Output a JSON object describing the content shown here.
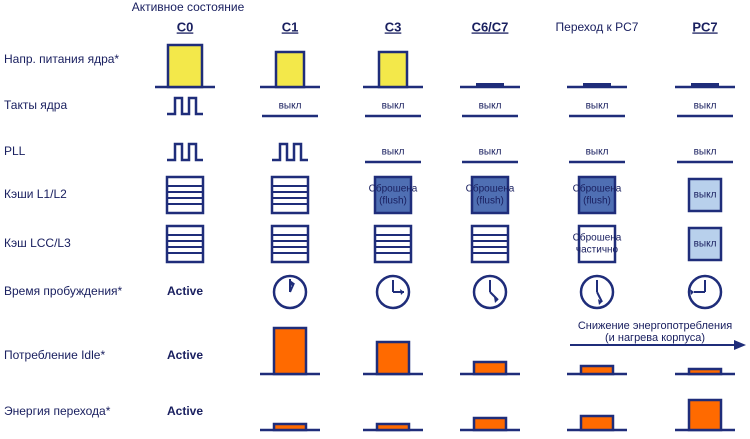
{
  "header": {
    "title": "Активное состояние",
    "columns": [
      "C0",
      "C1",
      "C3",
      "C6/C7",
      "Переход к PC7",
      "PC7"
    ]
  },
  "rows": [
    {
      "label": "Напр. питания ядра*",
      "cells": {}
    },
    {
      "label": "Такты ядра",
      "cells": {
        "C1": "выкл",
        "C3": "выкл",
        "C6/C7": "выкл",
        "Переход к PC7": "выкл",
        "PC7": "выкл"
      }
    },
    {
      "label": "PLL",
      "cells": {
        "C3": "выкл",
        "C6/C7": "выкл",
        "Переход к PC7": "выкл",
        "PC7": "выкл"
      }
    },
    {
      "label": "Кэши L1/L2",
      "cells": {
        "C3": [
          "Сброшена",
          "(flush)"
        ],
        "C6/C7": [
          "Сброшена",
          "(flush)"
        ],
        "Переход к PC7": [
          "Сброшена",
          "(flush)"
        ],
        "PC7": "выкл"
      }
    },
    {
      "label": "Кэш LCC/L3",
      "cells": {
        "Переход к PC7": [
          "Сброшена",
          "частично"
        ],
        "PC7": "выкл"
      }
    },
    {
      "label": "Время пробуждения*",
      "cells": {
        "C0": "Active"
      }
    },
    {
      "label": "Потребление Idle*",
      "cells": {
        "C0": "Active"
      }
    },
    {
      "label": "Энергия перехода*",
      "cells": {
        "C0": "Active"
      }
    }
  ],
  "arrow": [
    "Снижение энергопотребления",
    "(и нагрева корпуса)"
  ]
}
